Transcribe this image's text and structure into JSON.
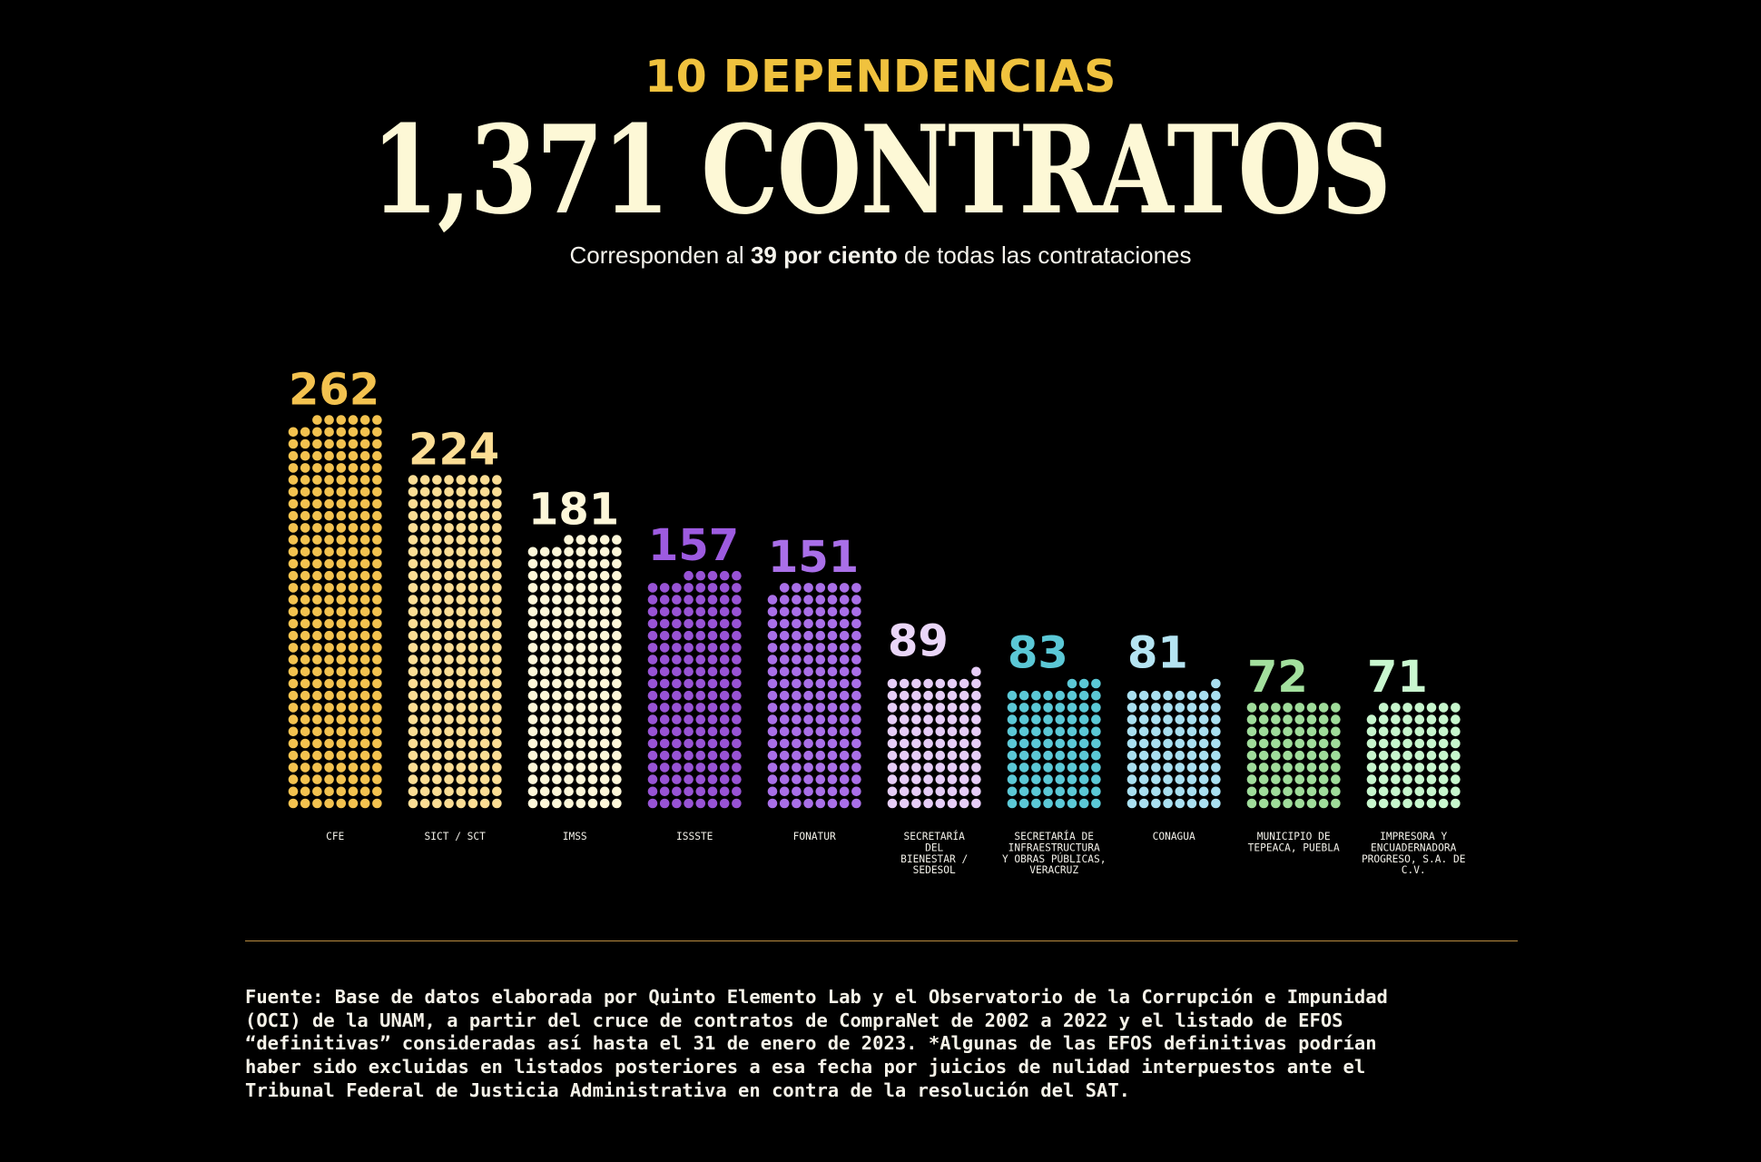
{
  "header": {
    "kicker": "10 DEPENDENCIAS",
    "headline": "1,371 CONTRATOS",
    "subtitle_pre": "Corresponden al ",
    "subtitle_bold": "39 por ciento",
    "subtitle_post": " de todas las contrataciones"
  },
  "chart_data": {
    "type": "bar",
    "title": "1,371 CONTRATOS",
    "subtitle": "Corresponden al 39 por ciento de todas las contrataciones",
    "xlabel": "",
    "ylabel": "",
    "categories": [
      "CFE",
      "SICT / SCT",
      "IMSS",
      "ISSSTE",
      "FONATUR",
      "SECRETARÍA DEL BIENESTAR / SEDESOL",
      "SECRETARÍA DE INFRAESTRUCTURA Y OBRAS PÚBLICAS, VERACRUZ",
      "CONAGUA",
      "MUNICIPIO DE TEPEACA, PUEBLA",
      "IMPRESORA Y ENCUADERNADORA PROGRESO, S.A. DE C.V."
    ],
    "label_lines": [
      [
        "CFE"
      ],
      [
        "SICT / SCT"
      ],
      [
        "IMSS"
      ],
      [
        "ISSSTE"
      ],
      [
        "FONATUR"
      ],
      [
        "SECRETARÍA",
        "DEL",
        "BIENESTAR /",
        "SEDESOL"
      ],
      [
        "SECRETARÍA DE",
        "INFRAESTRUCTURA",
        "Y OBRAS PÚBLICAS,",
        "VERACRUZ"
      ],
      [
        "CONAGUA"
      ],
      [
        "MUNICIPIO DE",
        "TEPEACA, PUEBLA"
      ],
      [
        "IMPRESORA Y",
        "ENCUADERNADORA",
        "PROGRESO, S.A. DE",
        "C.V."
      ]
    ],
    "values": [
      262,
      224,
      181,
      157,
      151,
      89,
      83,
      81,
      72,
      71
    ],
    "value_labels": [
      "262",
      "224",
      "181",
      "157",
      "151",
      "89",
      "83",
      "81",
      "72",
      "71"
    ],
    "colors": [
      "#f3c24f",
      "#fbdd94",
      "#fdf7d9",
      "#9853d5",
      "#a96fe8",
      "#e6cdf7",
      "#5bc8d6",
      "#a9dff0",
      "#9fdc9a",
      "#c7f6cd"
    ],
    "label_colors": [
      "#f3c24f",
      "#fbdd94",
      "#fdf7d9",
      "#9d5be0",
      "#a96fe8",
      "#ead6f8",
      "#5bc8d6",
      "#b5e4f2",
      "#a3e09e",
      "#c9f7cf"
    ],
    "encoding": "one dot per contract, 8 dots per row"
  },
  "footer": {
    "source": "Fuente: Base de datos elaborada por Quinto Elemento Lab y el Observatorio de la Corrupción e Impunidad\n(OCI) de la UNAM, a partir del cruce de contratos de CompraNet de 2002 a 2022 y el listado de EFOS\n“definitivas” consideradas así hasta el 31 de enero de 2023. *Algunas de las EFOS definitivas podrían\nhaber sido excluidas en listados posteriores a esa fecha por juicios de nulidad interpuestos ante el\nTribunal Federal de Justicia Administrativa en contra de la resolución del SAT."
  }
}
